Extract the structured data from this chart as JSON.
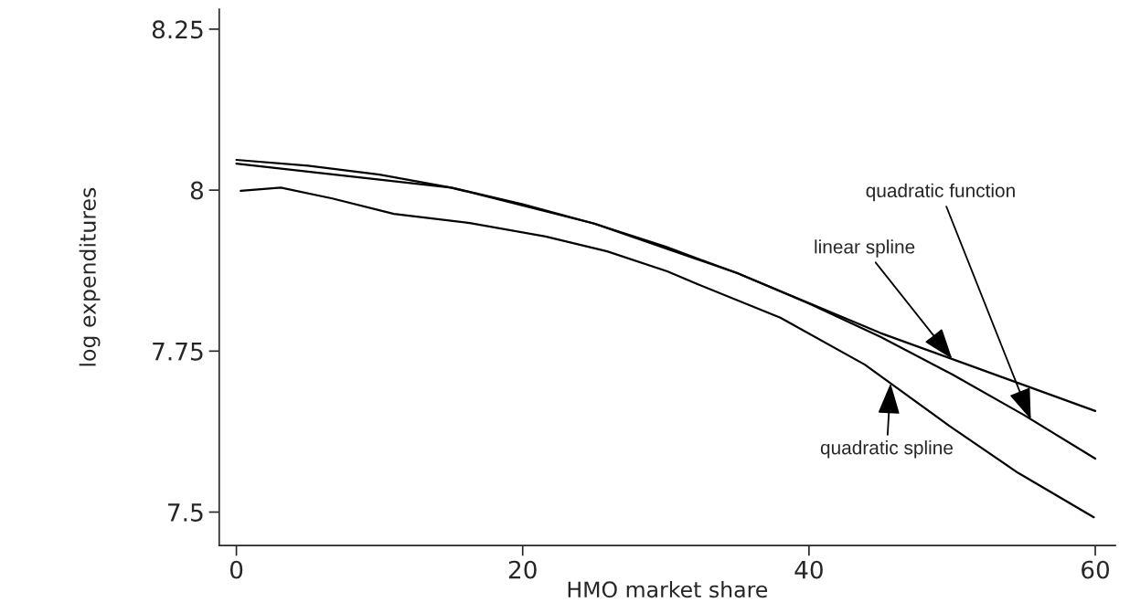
{
  "chart_data": {
    "type": "line",
    "xlabel": "HMO market share",
    "ylabel": "log expenditures",
    "xlim": [
      -1.2,
      61.4
    ],
    "ylim": [
      7.448,
      8.281
    ],
    "xticks": [
      0,
      20,
      40,
      60
    ],
    "yticks": [
      7.5,
      7.75,
      8,
      8.25
    ],
    "grid": false,
    "legend": false,
    "marker": "none",
    "line_style": "solid",
    "series": [
      {
        "color": "#000000",
        "x": [
          0,
          15,
          25,
          35,
          45,
          60
        ],
        "values": [
          8.041,
          8.004,
          7.948,
          7.871,
          7.778,
          7.657
        ]
      },
      {
        "color": "#000000",
        "x": [
          0,
          5,
          10,
          15,
          20,
          25,
          30,
          35,
          40,
          45,
          50,
          55,
          60
        ],
        "values": [
          8.047,
          8.038,
          8.024,
          8.004,
          7.978,
          7.948,
          7.912,
          7.871,
          7.824,
          7.772,
          7.714,
          7.651,
          7.583
        ]
      },
      {
        "color": "#000000",
        "x": [
          0.3,
          3.1,
          6.7,
          11,
          16.3,
          21.6,
          25.9,
          30.1,
          32.1,
          38,
          43.9,
          49.8,
          54.6,
          59.9
        ],
        "values": [
          7.999,
          8.004,
          7.987,
          7.963,
          7.949,
          7.928,
          7.905,
          7.874,
          7.855,
          7.802,
          7.729,
          7.634,
          7.561,
          7.492
        ]
      }
    ],
    "annotations": [
      {
        "text": "linear spline",
        "x": 50,
        "y": 7.738
      },
      {
        "text": "quadratic function",
        "x": 55.5,
        "y": 7.644
      },
      {
        "text": "quadratic spline",
        "x": 45.7,
        "y": 7.7
      }
    ]
  }
}
